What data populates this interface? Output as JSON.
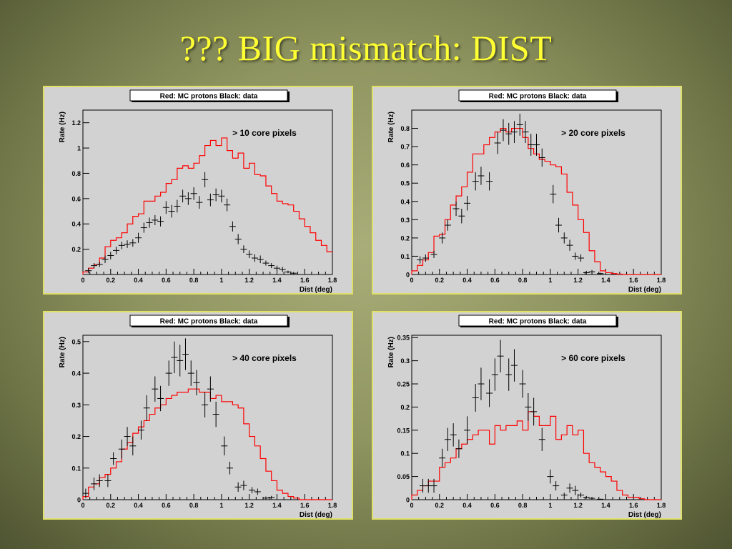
{
  "slide": {
    "title": "???  BIG mismatch:  DIST"
  },
  "chart_data": [
    {
      "type": "histogram-with-errorbars",
      "legend": "Red: MC protons        Black: data",
      "annotation": "> 10 core pixels",
      "xlabel": "Dist (deg)",
      "ylabel": "Rate (Hz)",
      "xlim": [
        0,
        1.8
      ],
      "ylim": [
        0,
        1.3
      ],
      "xticks": [
        "0",
        "0.2",
        "0.4",
        "0.6",
        "0.8",
        "1",
        "1.2",
        "1.4",
        "1.6",
        "1.8"
      ],
      "yticks": [
        {
          "v": 0.2,
          "label": "0.2"
        },
        {
          "v": 0.4,
          "label": "0.4"
        },
        {
          "v": 0.6,
          "label": "0.6"
        },
        {
          "v": 0.8,
          "label": "0.8"
        },
        {
          "v": 1.0,
          "label": "1"
        },
        {
          "v": 1.2,
          "label": "1.2"
        }
      ],
      "bin_width": 0.04,
      "mc_protons": [
        0.02,
        0.05,
        0.08,
        0.13,
        0.22,
        0.27,
        0.29,
        0.33,
        0.4,
        0.46,
        0.48,
        0.58,
        0.58,
        0.62,
        0.65,
        0.72,
        0.75,
        0.84,
        0.86,
        0.84,
        0.88,
        0.94,
        1.02,
        1.06,
        1.02,
        1.08,
        0.98,
        0.92,
        0.96,
        0.84,
        0.88,
        0.79,
        0.78,
        0.7,
        0.64,
        0.58,
        0.56,
        0.55,
        0.5,
        0.44,
        0.38,
        0.33,
        0.27,
        0.23,
        0.18,
        0.14,
        0.12,
        0.08,
        0.04,
        0.02,
        0.01,
        0.005,
        0.002,
        0.001,
        0.0,
        0.0
      ],
      "data_x": [
        0.04,
        0.08,
        0.12,
        0.16,
        0.2,
        0.24,
        0.28,
        0.32,
        0.36,
        0.4,
        0.44,
        0.48,
        0.52,
        0.56,
        0.6,
        0.64,
        0.68,
        0.72,
        0.76,
        0.8,
        0.84,
        0.88,
        0.92,
        0.96,
        1.0,
        1.04,
        1.08,
        1.12,
        1.16,
        1.2,
        1.24,
        1.28,
        1.32,
        1.36,
        1.4,
        1.44,
        1.48,
        1.52
      ],
      "data_y": [
        0.03,
        0.07,
        0.08,
        0.12,
        0.15,
        0.19,
        0.23,
        0.24,
        0.25,
        0.29,
        0.37,
        0.41,
        0.43,
        0.42,
        0.53,
        0.5,
        0.54,
        0.62,
        0.6,
        0.64,
        0.57,
        0.75,
        0.59,
        0.63,
        0.62,
        0.55,
        0.38,
        0.28,
        0.2,
        0.16,
        0.13,
        0.12,
        0.09,
        0.07,
        0.05,
        0.04,
        0.02,
        0.01
      ],
      "data_err": [
        0.02,
        0.02,
        0.02,
        0.03,
        0.03,
        0.03,
        0.03,
        0.03,
        0.03,
        0.04,
        0.04,
        0.04,
        0.04,
        0.04,
        0.05,
        0.05,
        0.05,
        0.05,
        0.05,
        0.05,
        0.05,
        0.06,
        0.05,
        0.05,
        0.05,
        0.05,
        0.04,
        0.04,
        0.03,
        0.03,
        0.03,
        0.03,
        0.02,
        0.02,
        0.02,
        0.02,
        0.01,
        0.01
      ]
    },
    {
      "type": "histogram-with-errorbars",
      "legend": "Red: MC protons        Black: data",
      "annotation": "> 20 core pixels",
      "xlabel": "Dist (deg)",
      "ylabel": "Rate (Hz)",
      "xlim": [
        0,
        1.8
      ],
      "ylim": [
        0,
        0.9
      ],
      "xticks": [
        "0",
        "0.2",
        "0.4",
        "0.6",
        "0.8",
        "1",
        "1.2",
        "1.4",
        "1.6",
        "1.8"
      ],
      "yticks": [
        {
          "v": 0,
          "label": "0"
        },
        {
          "v": 0.1,
          "label": "0.1"
        },
        {
          "v": 0.2,
          "label": "0.2"
        },
        {
          "v": 0.3,
          "label": "0.3"
        },
        {
          "v": 0.4,
          "label": "0.4"
        },
        {
          "v": 0.5,
          "label": "0.5"
        },
        {
          "v": 0.6,
          "label": "0.6"
        },
        {
          "v": 0.7,
          "label": "0.7"
        },
        {
          "v": 0.8,
          "label": "0.8"
        }
      ],
      "bin_width": 0.04,
      "mc_protons": [
        0.02,
        0.05,
        0.08,
        0.12,
        0.21,
        0.22,
        0.3,
        0.38,
        0.43,
        0.48,
        0.56,
        0.66,
        0.66,
        0.71,
        0.75,
        0.78,
        0.8,
        0.78,
        0.8,
        0.8,
        0.75,
        0.69,
        0.66,
        0.63,
        0.62,
        0.6,
        0.59,
        0.55,
        0.45,
        0.38,
        0.3,
        0.23,
        0.13,
        0.07,
        0.02,
        0.01,
        0.005,
        0.002,
        0.0,
        0.0,
        0.0,
        0.0,
        0.0,
        0.0,
        0.0
      ],
      "data_x": [
        0.06,
        0.1,
        0.16,
        0.22,
        0.26,
        0.32,
        0.36,
        0.4,
        0.46,
        0.5,
        0.56,
        0.62,
        0.66,
        0.7,
        0.74,
        0.78,
        0.82,
        0.86,
        0.9,
        0.94,
        1.02,
        1.06,
        1.1,
        1.14,
        1.18,
        1.22,
        1.26,
        1.3,
        1.36
      ],
      "data_y": [
        0.08,
        0.09,
        0.11,
        0.2,
        0.27,
        0.36,
        0.32,
        0.39,
        0.51,
        0.54,
        0.51,
        0.72,
        0.79,
        0.77,
        0.78,
        0.82,
        0.78,
        0.71,
        0.71,
        0.64,
        0.44,
        0.27,
        0.2,
        0.16,
        0.1,
        0.09,
        0.01,
        0.015,
        0.005
      ],
      "data_err": [
        0.02,
        0.02,
        0.02,
        0.03,
        0.03,
        0.04,
        0.04,
        0.04,
        0.05,
        0.05,
        0.05,
        0.06,
        0.06,
        0.06,
        0.06,
        0.06,
        0.06,
        0.06,
        0.06,
        0.05,
        0.05,
        0.04,
        0.03,
        0.03,
        0.02,
        0.02,
        0.01,
        0.01,
        0.005
      ]
    },
    {
      "type": "histogram-with-errorbars",
      "legend": "Red: MC protons        Black: data",
      "annotation": "> 40 core pixels",
      "xlabel": "Dist (deg)",
      "ylabel": "Rate (Hz)",
      "xlim": [
        0,
        1.8
      ],
      "ylim": [
        0,
        0.52
      ],
      "xticks": [
        "0",
        "0.2",
        "0.4",
        "0.6",
        "0.8",
        "1",
        "1.2",
        "1.4",
        "1.6",
        "1.8"
      ],
      "yticks": [
        {
          "v": 0,
          "label": "0"
        },
        {
          "v": 0.1,
          "label": "0.1"
        },
        {
          "v": 0.2,
          "label": "0.2"
        },
        {
          "v": 0.3,
          "label": "0.3"
        },
        {
          "v": 0.4,
          "label": "0.4"
        },
        {
          "v": 0.5,
          "label": "0.5"
        }
      ],
      "bin_width": 0.04,
      "mc_protons": [
        0.01,
        0.04,
        0.05,
        0.07,
        0.08,
        0.1,
        0.12,
        0.16,
        0.18,
        0.21,
        0.23,
        0.25,
        0.27,
        0.29,
        0.3,
        0.32,
        0.33,
        0.34,
        0.34,
        0.35,
        0.35,
        0.34,
        0.34,
        0.32,
        0.33,
        0.31,
        0.31,
        0.3,
        0.29,
        0.24,
        0.2,
        0.17,
        0.13,
        0.09,
        0.06,
        0.03,
        0.02,
        0.01,
        0.005,
        0.0,
        0.0,
        0.0,
        0.0,
        0.0,
        0.0
      ],
      "data_x": [
        0.02,
        0.08,
        0.12,
        0.18,
        0.22,
        0.28,
        0.32,
        0.36,
        0.42,
        0.46,
        0.52,
        0.56,
        0.62,
        0.66,
        0.7,
        0.74,
        0.78,
        0.82,
        0.88,
        0.92,
        0.96,
        1.02,
        1.06,
        1.12,
        1.16,
        1.22,
        1.26,
        1.32,
        1.36,
        1.4
      ],
      "data_y": [
        0.02,
        0.05,
        0.06,
        0.06,
        0.13,
        0.16,
        0.2,
        0.17,
        0.22,
        0.29,
        0.35,
        0.32,
        0.4,
        0.45,
        0.44,
        0.46,
        0.4,
        0.37,
        0.3,
        0.35,
        0.27,
        0.17,
        0.1,
        0.04,
        0.045,
        0.03,
        0.025,
        0.005,
        0.007,
        0.0
      ],
      "data_err": [
        0.015,
        0.02,
        0.02,
        0.02,
        0.02,
        0.03,
        0.03,
        0.03,
        0.03,
        0.04,
        0.04,
        0.04,
        0.04,
        0.05,
        0.05,
        0.05,
        0.04,
        0.04,
        0.04,
        0.04,
        0.04,
        0.03,
        0.02,
        0.015,
        0.015,
        0.01,
        0.01,
        0.005,
        0.005,
        0.002
      ]
    },
    {
      "type": "histogram-with-errorbars",
      "legend": "Red: MC protons        Black: data",
      "annotation": "> 60 core pixels",
      "xlabel": "Dist (deg)",
      "ylabel": "Rate (Hz)",
      "xlim": [
        0,
        1.8
      ],
      "ylim": [
        0,
        0.355
      ],
      "xticks": [
        "0",
        "0.2",
        "0.4",
        "0.6",
        "0.8",
        "1",
        "1.2",
        "1.4",
        "1.6",
        "1.8"
      ],
      "yticks": [
        {
          "v": 0,
          "label": "0"
        },
        {
          "v": 0.05,
          "label": "0.05"
        },
        {
          "v": 0.1,
          "label": "0.1"
        },
        {
          "v": 0.15,
          "label": "0.15"
        },
        {
          "v": 0.2,
          "label": "0.2"
        },
        {
          "v": 0.25,
          "label": "0.25"
        },
        {
          "v": 0.3,
          "label": "0.3"
        },
        {
          "v": 0.35,
          "label": "0.35"
        }
      ],
      "bin_width": 0.04,
      "mc_protons": [
        0.01,
        0.02,
        0.03,
        0.04,
        0.04,
        0.07,
        0.08,
        0.09,
        0.11,
        0.12,
        0.13,
        0.14,
        0.15,
        0.15,
        0.12,
        0.16,
        0.15,
        0.16,
        0.16,
        0.17,
        0.15,
        0.19,
        0.18,
        0.16,
        0.16,
        0.18,
        0.13,
        0.14,
        0.16,
        0.14,
        0.15,
        0.1,
        0.08,
        0.07,
        0.06,
        0.05,
        0.04,
        0.02,
        0.01,
        0.005,
        0.005,
        0.002,
        0.0,
        0.0,
        0.0
      ],
      "data_x": [
        0.08,
        0.12,
        0.16,
        0.22,
        0.26,
        0.3,
        0.34,
        0.4,
        0.46,
        0.5,
        0.56,
        0.6,
        0.64,
        0.7,
        0.74,
        0.8,
        0.84,
        0.88,
        0.94,
        1.0,
        1.04,
        1.1,
        1.14,
        1.18,
        1.22,
        1.26,
        1.3,
        1.36
      ],
      "data_y": [
        0.03,
        0.03,
        0.03,
        0.09,
        0.13,
        0.14,
        0.11,
        0.15,
        0.22,
        0.25,
        0.23,
        0.27,
        0.31,
        0.27,
        0.29,
        0.25,
        0.2,
        0.19,
        0.13,
        0.05,
        0.03,
        0.01,
        0.025,
        0.02,
        0.01,
        0.005,
        0.003,
        0.001
      ],
      "data_err": [
        0.015,
        0.015,
        0.015,
        0.02,
        0.025,
        0.025,
        0.02,
        0.03,
        0.03,
        0.035,
        0.03,
        0.035,
        0.035,
        0.035,
        0.035,
        0.03,
        0.03,
        0.03,
        0.025,
        0.015,
        0.01,
        0.005,
        0.01,
        0.01,
        0.005,
        0.003,
        0.002,
        0.001
      ]
    }
  ]
}
